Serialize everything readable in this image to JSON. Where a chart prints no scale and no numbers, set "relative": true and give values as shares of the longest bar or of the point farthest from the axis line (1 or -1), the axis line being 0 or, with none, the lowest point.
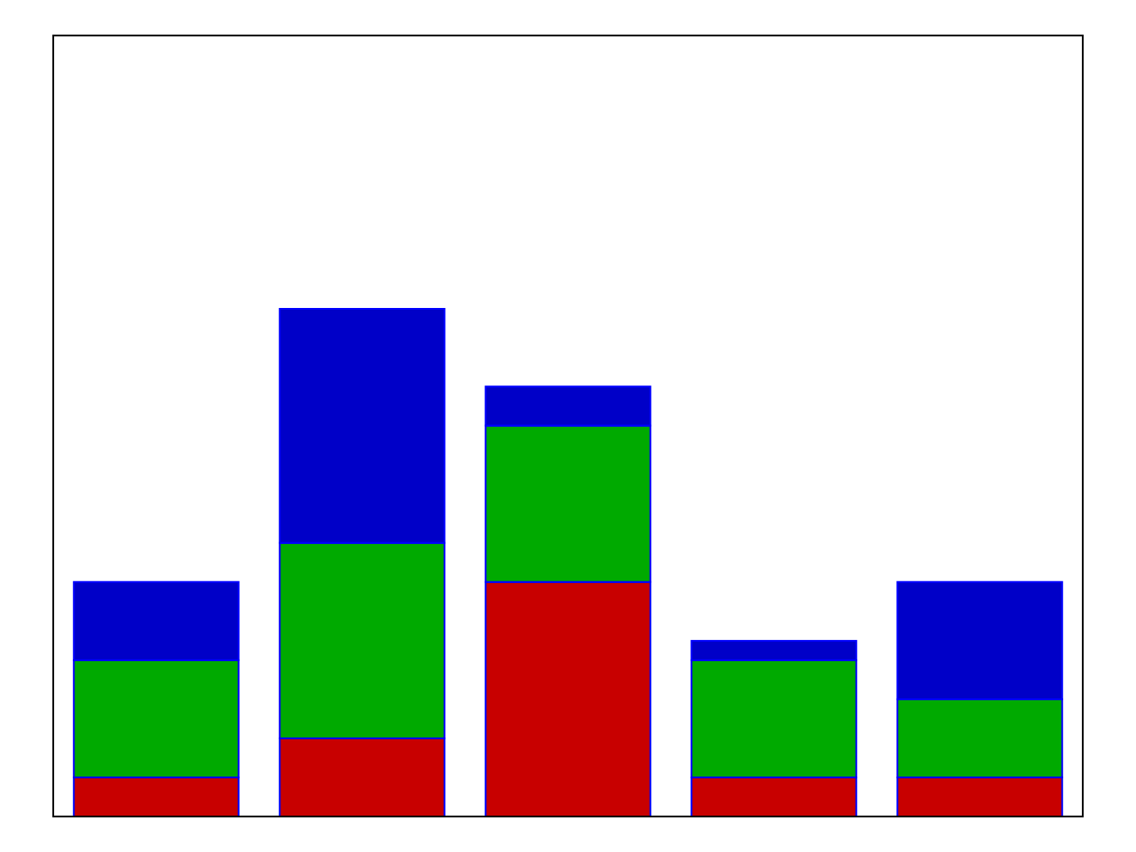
{
  "chart_data": {
    "type": "bar",
    "stacked": true,
    "relative": true,
    "categories": [
      null,
      null,
      null,
      null,
      null
    ],
    "series": [
      {
        "color": "#c80000",
        "values": [
          0.077,
          0.154,
          0.462,
          0.077,
          0.077
        ]
      },
      {
        "color": "#00aa00",
        "values": [
          0.231,
          0.385,
          0.308,
          0.231,
          0.154
        ]
      },
      {
        "color": "#0000c8",
        "values": [
          0.154,
          0.461,
          0.077,
          0.038,
          0.231
        ]
      }
    ]
  }
}
